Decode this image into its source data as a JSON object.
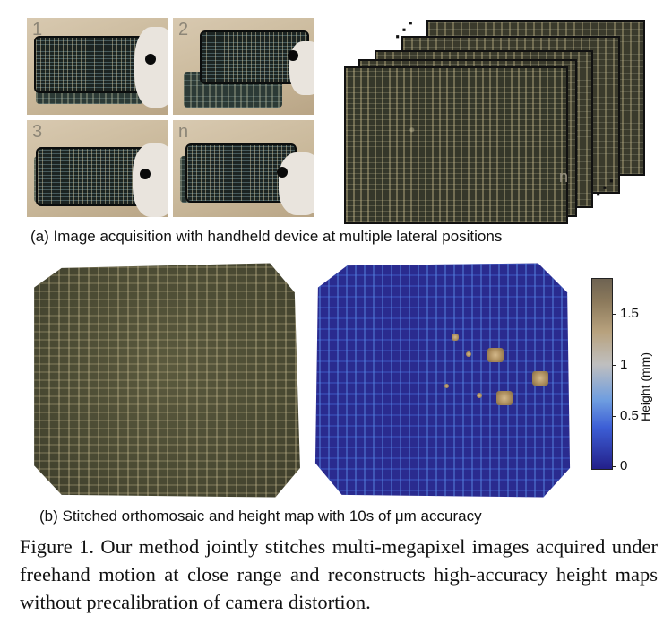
{
  "panel_a": {
    "photos": [
      {
        "label": "1"
      },
      {
        "label": "2"
      },
      {
        "label": "3"
      },
      {
        "label": "n"
      }
    ],
    "stack_label": "n",
    "caption": "(a) Image acquisition with handheld device at multiple lateral positions"
  },
  "panel_b": {
    "colorbar": {
      "title": "Height (mm)",
      "ticks": [
        "1.5",
        "1",
        "0.5",
        "0"
      ],
      "tick_values": [
        1.5,
        1,
        0.5,
        0
      ],
      "range": [
        0,
        1.85
      ]
    },
    "caption": "(b) Stitched orthomosaic and height map with 10s of μm accuracy"
  },
  "figure_caption": "Figure 1. Our method jointly stitches multi-megapixel images acquired under freehand motion at close range and reconstructs high-accuracy height maps without precalibration of camera distortion."
}
